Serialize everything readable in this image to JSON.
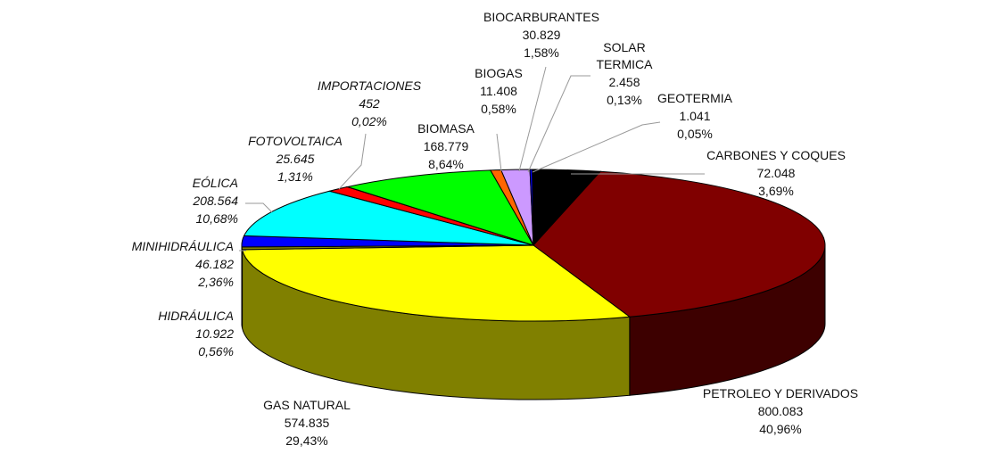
{
  "chart_data": {
    "type": "pie",
    "title": "",
    "slices": [
      {
        "name": "CARBONES Y COQUES",
        "value": "72.048",
        "percent": "3,69%",
        "pct": 3.69,
        "color": "#000000",
        "side": "#000000",
        "italic": false
      },
      {
        "name": "PETROLEO Y DERIVADOS",
        "value": "800.083",
        "percent": "40,96%",
        "pct": 40.96,
        "color": "#800000",
        "side": "#3d0000",
        "italic": false
      },
      {
        "name": "GAS NATURAL",
        "value": "574.835",
        "percent": "29,43%",
        "pct": 29.43,
        "color": "#ffff00",
        "side": "#808000",
        "italic": false
      },
      {
        "name": "HIDRÁULICA",
        "value": "10.922",
        "percent": "0,56%",
        "pct": 0.56,
        "color": "#808000",
        "side": "#808000",
        "italic": true
      },
      {
        "name": "MINIHIDRÁULICA",
        "value": "46.182",
        "percent": "2,36%",
        "pct": 2.36,
        "color": "#0000ff",
        "side": "#00007a",
        "italic": true
      },
      {
        "name": "EÓLICA",
        "value": "208.564",
        "percent": "10,68%",
        "pct": 10.68,
        "color": "#00ffff",
        "side": "#008080",
        "italic": true
      },
      {
        "name": "FOTOVOLTAICA",
        "value": "25.645",
        "percent": "1,31%",
        "pct": 1.31,
        "color": "#ff0000",
        "side": "#800000",
        "italic": true
      },
      {
        "name": "IMPORTACIONES",
        "value": "452",
        "percent": "0,02%",
        "pct": 0.02,
        "color": "#808080",
        "side": "#404040",
        "italic": true
      },
      {
        "name": "BIOMASA",
        "value": "168.779",
        "percent": "8,64%",
        "pct": 8.64,
        "color": "#00ff00",
        "side": "#008000",
        "italic": false
      },
      {
        "name": "BIOGAS",
        "value": "11.408",
        "percent": "0,58%",
        "pct": 0.58,
        "color": "#ff6600",
        "side": "#803300",
        "italic": false
      },
      {
        "name": "BIOCARBURANTES",
        "value": "30.829",
        "percent": "1,58%",
        "pct": 1.58,
        "color": "#cc99ff",
        "side": "#664c80",
        "italic": false
      },
      {
        "name": "SOLAR TERMICA",
        "value": "2.458",
        "percent": "0,13%",
        "pct": 0.13,
        "color": "#0000ff",
        "side": "#00007a",
        "italic": false
      },
      {
        "name": "GEOTERMIA",
        "value": "1.041",
        "percent": "0,05%",
        "pct": 0.05,
        "color": "#00ffff",
        "side": "#008080",
        "italic": false
      }
    ]
  }
}
